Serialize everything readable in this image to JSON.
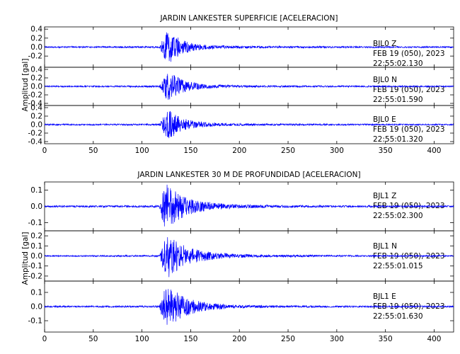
{
  "panels": [
    {
      "title": "JARDIN LANKESTER SUPERFICIE [ACELERACION]",
      "ylabel": "Amplitud [gal]",
      "traces": [
        {
          "label1": "BJL0   Z",
          "label2": "FEB 19 (050), 2023",
          "label3": "22:55:02.130"
        },
        {
          "label1": "BJL0   N",
          "label2": "FEB 19 (050), 2023",
          "label3": "22:55:01.590"
        },
        {
          "label1": "BJL0   E",
          "label2": "FEB 19 (050), 2023",
          "label3": "22:55:01.320"
        }
      ]
    },
    {
      "title": "JARDIN LANKESTER 30 M DE PROFUNDIDAD [ACELERACION]",
      "ylabel": "Amplitud [gal]",
      "traces": [
        {
          "label1": "BJL1   Z",
          "label2": "FEB 19 (050), 2023",
          "label3": "22:55:02.300"
        },
        {
          "label1": "BJL1   N",
          "label2": "FEB 19 (050), 2023",
          "label3": "22:55:01.015"
        },
        {
          "label1": "BJL1   E",
          "label2": "FEB 19 (050), 2023",
          "label3": "22:55:01.630"
        }
      ]
    }
  ],
  "chart_data": [
    {
      "type": "line",
      "title": "JARDIN LANKESTER SUPERFICIE [ACELERACION]",
      "ylabel": "Amplitud [gal]",
      "xlabel": "",
      "xlim": [
        0,
        420
      ],
      "xticks": [
        0,
        50,
        100,
        150,
        200,
        250,
        300,
        350,
        400
      ],
      "line_color": "#0000ff",
      "series": [
        {
          "name": "BJL0   Z",
          "ylim": [
            -0.45,
            0.45
          ],
          "yticks": [
            -0.2,
            0.0,
            0.2,
            0.4
          ],
          "envelope": {
            "x": [
              0,
              118,
              122,
              125,
              128,
              132,
              138,
              145,
              155,
              170,
              190,
              230,
              300,
              420
            ],
            "amp": [
              0.015,
              0.02,
              0.2,
              0.34,
              0.38,
              0.3,
              0.2,
              0.13,
              0.08,
              0.045,
              0.03,
              0.022,
              0.018,
              0.015
            ]
          }
        },
        {
          "name": "BJL0   N",
          "ylim": [
            -0.45,
            0.45
          ],
          "yticks": [
            -0.4,
            -0.2,
            0.0,
            0.2,
            0.4
          ],
          "envelope": {
            "x": [
              0,
              118,
              122,
              125,
              128,
              132,
              138,
              145,
              155,
              170,
              190,
              230,
              300,
              420
            ],
            "amp": [
              0.015,
              0.02,
              0.18,
              0.3,
              0.36,
              0.3,
              0.2,
              0.13,
              0.08,
              0.045,
              0.03,
              0.022,
              0.018,
              0.015
            ]
          }
        },
        {
          "name": "BJL0   E",
          "ylim": [
            -0.45,
            0.45
          ],
          "yticks": [
            -0.4,
            -0.2,
            0.0,
            0.2,
            0.4
          ],
          "envelope": {
            "x": [
              0,
              118,
              122,
              125,
              128,
              132,
              138,
              145,
              155,
              170,
              190,
              230,
              300,
              420
            ],
            "amp": [
              0.015,
              0.02,
              0.18,
              0.3,
              0.34,
              0.28,
              0.2,
              0.13,
              0.08,
              0.045,
              0.03,
              0.022,
              0.018,
              0.015
            ]
          }
        }
      ]
    },
    {
      "type": "line",
      "title": "JARDIN LANKESTER 30 M DE PROFUNDIDAD [ACELERACION]",
      "ylabel": "Amplitud [gal]",
      "xlabel": "",
      "xlim": [
        0,
        420
      ],
      "xticks": [
        0,
        50,
        100,
        150,
        200,
        250,
        300,
        350,
        400
      ],
      "line_color": "#0000ff",
      "series": [
        {
          "name": "BJL1   Z",
          "ylim": [
            -0.15,
            0.15
          ],
          "yticks": [
            -0.1,
            0.0,
            0.1
          ],
          "envelope": {
            "x": [
              0,
              118,
              121,
              124,
              128,
              133,
              140,
              150,
              160,
              175,
              195,
              230,
              300,
              420
            ],
            "amp": [
              0.005,
              0.006,
              0.1,
              0.14,
              0.13,
              0.1,
              0.075,
              0.05,
              0.035,
              0.022,
              0.012,
              0.008,
              0.006,
              0.005
            ]
          }
        },
        {
          "name": "BJL1   N",
          "ylim": [
            -0.25,
            0.25
          ],
          "yticks": [
            -0.2,
            -0.1,
            0.0,
            0.1,
            0.2
          ],
          "envelope": {
            "x": [
              0,
              118,
              121,
              124,
              128,
              133,
              140,
              150,
              160,
              175,
              195,
              230,
              300,
              420
            ],
            "amp": [
              0.006,
              0.008,
              0.12,
              0.2,
              0.22,
              0.18,
              0.12,
              0.08,
              0.055,
              0.035,
              0.02,
              0.012,
              0.008,
              0.006
            ]
          }
        },
        {
          "name": "BJL1   E",
          "ylim": [
            -0.18,
            0.18
          ],
          "yticks": [
            -0.1,
            0.0,
            0.1
          ],
          "envelope": {
            "x": [
              0,
              118,
              121,
              124,
              128,
              133,
              140,
              150,
              160,
              175,
              195,
              230,
              300,
              420
            ],
            "amp": [
              0.005,
              0.006,
              0.09,
              0.13,
              0.14,
              0.12,
              0.085,
              0.055,
              0.035,
              0.022,
              0.012,
              0.008,
              0.006,
              0.005
            ]
          }
        }
      ]
    }
  ]
}
